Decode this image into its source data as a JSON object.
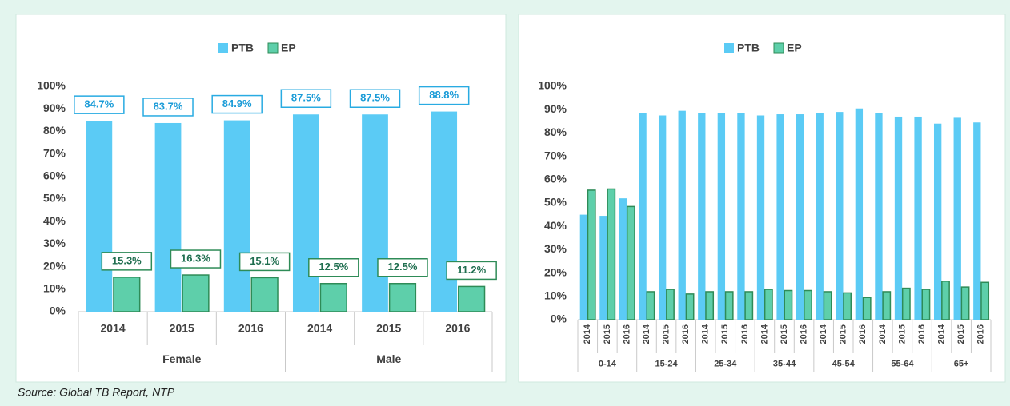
{
  "source": "Source: Global TB Report, NTP",
  "chart_data": [
    {
      "type": "bar",
      "groups": [
        {
          "label": "Female",
          "categories": [
            "2014",
            "2015",
            "2016"
          ]
        },
        {
          "label": "Male",
          "categories": [
            "2014",
            "2015",
            "2016"
          ]
        }
      ],
      "series": [
        {
          "name": "PTB",
          "color": "#5bcbf5",
          "values": [
            84.7,
            83.7,
            84.9,
            87.5,
            87.5,
            88.8
          ],
          "value_labels": [
            "84.7%",
            "83.7%",
            "84.9%",
            "87.5%",
            "87.5%",
            "88.8%"
          ]
        },
        {
          "name": "EP",
          "color": "#5ecfaa",
          "values": [
            15.3,
            16.3,
            15.1,
            12.5,
            12.5,
            11.2
          ],
          "value_labels": [
            "15.3%",
            "16.3%",
            "15.1%",
            "12.5%",
            "12.5%",
            "11.2%"
          ]
        }
      ],
      "ylim": [
        0,
        100
      ],
      "yticks": [
        {
          "value": 0,
          "label": "0%"
        },
        {
          "value": 10,
          "label": "10%"
        },
        {
          "value": 20,
          "label": "20%"
        },
        {
          "value": 30,
          "label": "30%"
        },
        {
          "value": 40,
          "label": "40%"
        },
        {
          "value": 50,
          "label": "50%"
        },
        {
          "value": 60,
          "label": "60%"
        },
        {
          "value": 70,
          "label": "70%"
        },
        {
          "value": 80,
          "label": "80%"
        },
        {
          "value": 90,
          "label": "90%"
        },
        {
          "value": 100,
          "label": "100%"
        }
      ],
      "legend": "top"
    },
    {
      "type": "bar",
      "groups": [
        {
          "label": "0-14",
          "categories": [
            "2014",
            "2015",
            "2016"
          ]
        },
        {
          "label": "15-24",
          "categories": [
            "2014",
            "2015",
            "2016"
          ]
        },
        {
          "label": "25-34",
          "categories": [
            "2014",
            "2015",
            "2016"
          ]
        },
        {
          "label": "35-44",
          "categories": [
            "2014",
            "2015",
            "2016"
          ]
        },
        {
          "label": "45-54",
          "categories": [
            "2014",
            "2015",
            "2016"
          ]
        },
        {
          "label": "55-64",
          "categories": [
            "2014",
            "2015",
            "2016"
          ]
        },
        {
          "label": "65+",
          "categories": [
            "2014",
            "2015",
            "2016"
          ]
        }
      ],
      "series": [
        {
          "name": "PTB",
          "color": "#5bcbf5",
          "values": [
            45,
            44.5,
            52,
            88.5,
            87.5,
            89.5,
            88.5,
            88.5,
            88.5,
            87.5,
            88,
            88,
            88.5,
            89,
            90.5,
            88.5,
            87,
            87,
            84,
            86.5,
            84.5
          ]
        },
        {
          "name": "EP",
          "color": "#5ecfaa",
          "values": [
            55.5,
            56,
            48.5,
            12,
            13,
            11,
            12,
            12,
            12,
            13,
            12.5,
            12.5,
            12,
            11.5,
            9.5,
            12,
            13.5,
            13,
            16.5,
            14,
            16
          ]
        }
      ],
      "ylim": [
        0,
        100
      ],
      "yticks": [
        {
          "value": 0,
          "label": "0%"
        },
        {
          "value": 10,
          "label": "10%"
        },
        {
          "value": 20,
          "label": "20%"
        },
        {
          "value": 30,
          "label": "30%"
        },
        {
          "value": 40,
          "label": "40%"
        },
        {
          "value": 50,
          "label": "50%"
        },
        {
          "value": 60,
          "label": "60%"
        },
        {
          "value": 70,
          "label": "70%"
        },
        {
          "value": 80,
          "label": "80%"
        },
        {
          "value": 90,
          "label": "90%"
        },
        {
          "value": 100,
          "label": "100%"
        }
      ],
      "legend": "top"
    }
  ]
}
